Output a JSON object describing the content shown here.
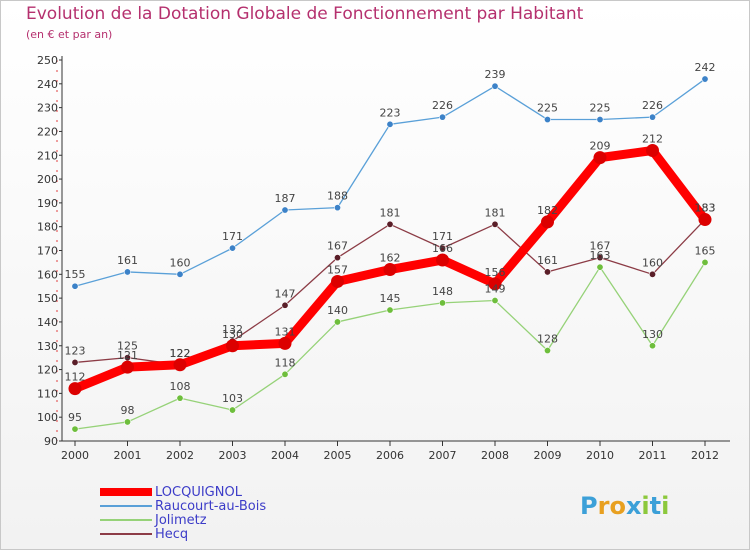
{
  "title": "Evolution de la Dotation Globale de Fonctionnement par Habitant",
  "subtitle": "(en € et par an)",
  "brand": {
    "letters": [
      "P",
      "r",
      "o",
      "x",
      "i",
      "t",
      "i"
    ],
    "colors": [
      "#3ca0d8",
      "#e8a020",
      "#e8a020",
      "#3ca0d8",
      "#8cc83c",
      "#3ca0d8",
      "#8cc83c"
    ]
  },
  "chart_data": {
    "type": "line",
    "title": "Evolution de la Dotation Globale de Fonctionnement par Habitant",
    "subtitle": "(en € et par an)",
    "x": [
      "2000",
      "2001",
      "2002",
      "2003",
      "2004",
      "2005",
      "2006",
      "2007",
      "2008",
      "2009",
      "2010",
      "2011",
      "2012"
    ],
    "ylim": [
      90,
      250
    ],
    "yticks": [
      "90",
      "100",
      "110",
      "120",
      "130",
      "140",
      "150",
      "160",
      "170",
      "180",
      "190",
      "200",
      "210",
      "220",
      "230",
      "240",
      "250"
    ],
    "grid": false,
    "legend_position": "bottom-left",
    "series": [
      {
        "name": "Raucourt-au-Bois",
        "color": "#5aa0d8",
        "marker": "#3c82c8",
        "thick": false,
        "values": [
          155,
          161,
          160,
          171,
          187,
          188,
          223,
          226,
          239,
          225,
          225,
          226,
          242
        ]
      },
      {
        "name": "Jolimetz",
        "color": "#96d278",
        "marker": "#6ebe3c",
        "thick": false,
        "values": [
          95,
          98,
          108,
          103,
          118,
          140,
          145,
          148,
          149,
          128,
          163,
          130,
          165
        ]
      },
      {
        "name": "Hecq",
        "color": "#8c3c46",
        "marker": "#5a1e28",
        "thick": false,
        "values": [
          123,
          125,
          122,
          132,
          147,
          167,
          181,
          171,
          181,
          161,
          167,
          160,
          183
        ]
      },
      {
        "name": "LOCQUIGNOL",
        "color": "#ff0000",
        "marker": "#dc0000",
        "thick": true,
        "values": [
          112,
          121,
          122,
          130,
          131,
          157,
          162,
          166,
          156,
          182,
          209,
          212,
          183
        ]
      }
    ],
    "legend": [
      "LOCQUIGNOL",
      "Raucourt-au-Bois",
      "Jolimetz",
      "Hecq"
    ]
  }
}
